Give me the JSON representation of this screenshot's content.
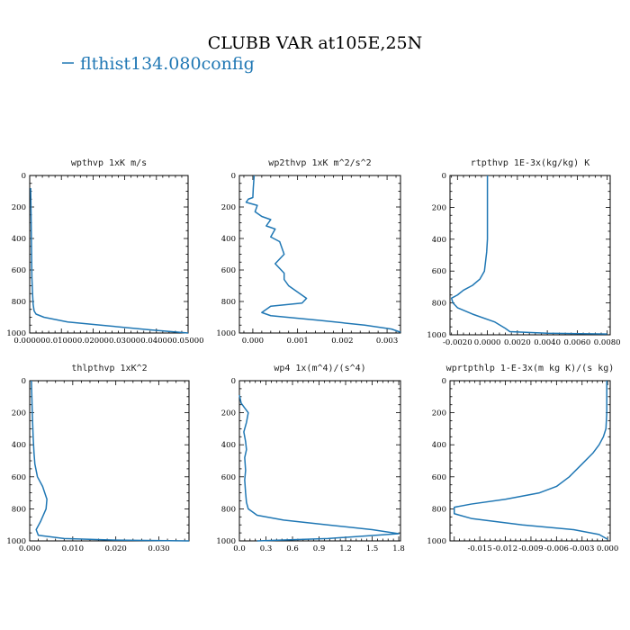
{
  "title": "CLUBB VAR at105E,25N",
  "legend": {
    "label": "flthist134.080config",
    "color": "#1f77b4"
  },
  "line_color": "#1f77b4",
  "chart_data": [
    {
      "type": "line",
      "title": "wpthvp  1xK m/s",
      "xlim": [
        0,
        0.05
      ],
      "ylim": [
        1000,
        0
      ],
      "xticks": [
        "0.00000",
        "0.01000",
        "0.02000",
        "0.03000",
        "0.04000",
        "0.05000"
      ],
      "xtick_values": [
        0,
        0.01,
        0.02,
        0.03,
        0.04,
        0.05
      ],
      "yticks": [
        "0",
        "200",
        "400",
        "600",
        "800",
        "1000"
      ],
      "series": [
        {
          "x": [
            0.0003,
            0.0004,
            0.0005,
            0.0006,
            0.0007,
            0.0009,
            0.0011,
            0.0014,
            0.002,
            0.0045,
            0.012,
            0.025,
            0.038,
            0.05
          ],
          "y": [
            80,
            200,
            350,
            500,
            650,
            750,
            820,
            860,
            880,
            900,
            930,
            955,
            980,
            1000
          ]
        }
      ]
    },
    {
      "type": "line",
      "title": "wp2thvp  1xK m^2/s^2",
      "xlim": [
        -0.0003,
        0.0033
      ],
      "ylim": [
        1000,
        0
      ],
      "xticks": [
        "0.000",
        "0.001",
        "0.002",
        "0.003"
      ],
      "xtick_values": [
        0,
        0.001,
        0.002,
        0.003
      ],
      "yticks": [
        "0",
        "200",
        "400",
        "600",
        "800",
        "1000"
      ],
      "series": [
        {
          "x": [
            3e-05,
            1e-05,
            0.0,
            -0.0001,
            -0.00015,
            0.0001,
            5e-05,
            0.0002,
            0.0004,
            0.0003,
            0.0005,
            0.0004,
            0.0006,
            0.0007,
            0.0005,
            0.0007,
            0.0007,
            0.0008,
            0.0011,
            0.0012,
            0.0011,
            0.0004,
            0.0002,
            0.0004,
            0.0015,
            0.0025,
            0.0031,
            0.0033
          ],
          "y": [
            0,
            80,
            140,
            150,
            170,
            190,
            230,
            260,
            280,
            320,
            340,
            390,
            420,
            500,
            560,
            620,
            660,
            700,
            760,
            780,
            810,
            830,
            870,
            890,
            920,
            950,
            975,
            995
          ]
        }
      ]
    },
    {
      "type": "line",
      "title": "rtpthvp  1E-3x(kg/kg) K",
      "xlim": [
        -0.0025,
        0.0082
      ],
      "ylim": [
        1000,
        0
      ],
      "xticks": [
        "-0.0020",
        "0.0000",
        "0.0020",
        "0.0040",
        "0.0060",
        "0.0080"
      ],
      "xtick_values": [
        -0.002,
        0,
        0.002,
        0.004,
        0.006,
        0.008
      ],
      "yticks": [
        "0",
        "200",
        "400",
        "600",
        "800",
        "1000"
      ],
      "series": [
        {
          "x": [
            0.0,
            0.0,
            0.0,
            -5e-05,
            -0.0001,
            -0.0002,
            -0.0005,
            -0.001,
            -0.0016,
            -0.002,
            -0.0024,
            -0.0023,
            -0.002,
            -0.001,
            0.0005,
            0.0012,
            0.0015,
            0.004,
            0.008
          ],
          "y": [
            0,
            200,
            400,
            480,
            520,
            600,
            650,
            690,
            720,
            750,
            770,
            800,
            830,
            870,
            920,
            960,
            980,
            990,
            995
          ]
        }
      ]
    },
    {
      "type": "line",
      "title": "thlpthvp  1xK^2",
      "xlim": [
        0,
        0.037
      ],
      "ylim": [
        1000,
        0
      ],
      "xticks": [
        "0.000",
        "0.010",
        "0.020",
        "0.030"
      ],
      "xtick_values": [
        0,
        0.01,
        0.02,
        0.03
      ],
      "yticks": [
        "0",
        "200",
        "400",
        "600",
        "800",
        "1000"
      ],
      "series": [
        {
          "x": [
            0.0004,
            0.0006,
            0.0008,
            0.001,
            0.0012,
            0.0018,
            0.003,
            0.004,
            0.0038,
            0.0025,
            0.0015,
            0.002,
            0.008,
            0.02,
            0.037
          ],
          "y": [
            0,
            200,
            350,
            450,
            520,
            600,
            660,
            740,
            800,
            880,
            930,
            965,
            985,
            995,
            1000
          ]
        }
      ]
    },
    {
      "type": "line",
      "title": "wp4  1x(m^4)/(s^4)",
      "xlim": [
        0,
        1.82
      ],
      "ylim": [
        1000,
        0
      ],
      "xticks": [
        "0.0",
        "0.3",
        "0.6",
        "0.9",
        "1.2",
        "1.5",
        "1.8"
      ],
      "xtick_values": [
        0,
        0.3,
        0.6,
        0.9,
        1.2,
        1.5,
        1.8
      ],
      "yticks": [
        "0",
        "200",
        "400",
        "600",
        "800",
        "1000"
      ],
      "series": [
        {
          "x": [
            0.0,
            0.02,
            0.06,
            0.1,
            0.08,
            0.05,
            0.07,
            0.08,
            0.06,
            0.07,
            0.06,
            0.07,
            0.08,
            0.1,
            0.2,
            0.5,
            1.0,
            1.5,
            1.8,
            1.0,
            0.2
          ],
          "y": [
            90,
            140,
            170,
            200,
            260,
            320,
            380,
            430,
            480,
            560,
            620,
            700,
            760,
            800,
            840,
            870,
            900,
            930,
            955,
            985,
            1000
          ]
        }
      ]
    },
    {
      "type": "line",
      "title": "wprtpthlp  1-E-3x(m kg K)/(s kg)",
      "xlim": [
        -0.0185,
        0.0003
      ],
      "ylim": [
        1000,
        0
      ],
      "xticks": [
        "-0.015",
        "-0.012",
        "-0.009",
        "-0.006",
        "-0.003",
        "0.000"
      ],
      "xtick_values": [
        -0.015,
        -0.012,
        -0.009,
        -0.006,
        -0.003,
        0
      ],
      "yticks": [
        "0",
        "200",
        "400",
        "600",
        "800",
        "1000"
      ],
      "series": [
        {
          "x": [
            -0.0001,
            -0.0001,
            -0.0002,
            -0.0005,
            -0.001,
            -0.0017,
            -0.003,
            -0.0045,
            -0.006,
            -0.008,
            -0.012,
            -0.016,
            -0.018,
            -0.018,
            -0.016,
            -0.01,
            -0.004,
            -0.001,
            0.0
          ],
          "y": [
            0,
            200,
            300,
            350,
            400,
            450,
            520,
            600,
            660,
            700,
            740,
            770,
            790,
            830,
            860,
            900,
            930,
            960,
            990
          ]
        }
      ]
    }
  ]
}
